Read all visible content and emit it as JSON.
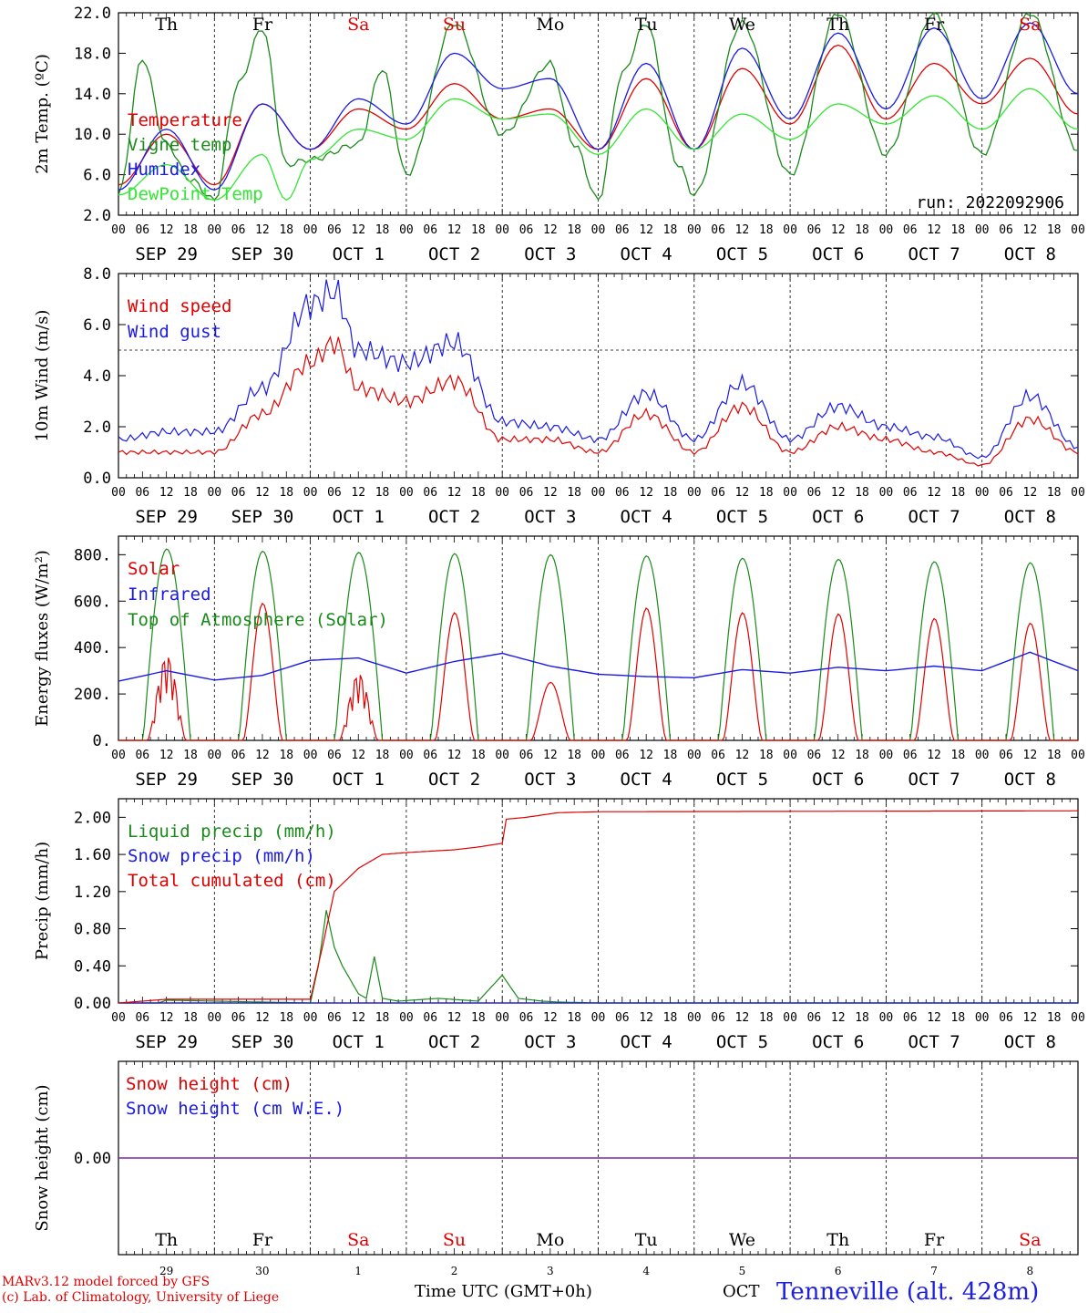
{
  "colors": {
    "red": "#e00000",
    "blue": "#1a1ae6",
    "dark_green": "#1a8a1a",
    "light_green": "#33e633",
    "purple": "#7a2aa0",
    "grid": "#000000"
  },
  "x_axis": {
    "hour_ticks": [
      "00",
      "06",
      "12",
      "18"
    ],
    "end_tick": "00",
    "dates": [
      "SEP 29",
      "SEP 30",
      "OCT  1",
      "OCT  2",
      "OCT  3",
      "OCT  4",
      "OCT  5",
      "OCT  6",
      "OCT  7",
      "OCT  8"
    ],
    "weekdays": [
      "Th",
      "Fr",
      "Sa",
      "Su",
      "Mo",
      "Tu",
      "We",
      "Th",
      "Fr",
      "Sa"
    ],
    "weekend_days": [
      2,
      3,
      9
    ],
    "day_numbers": [
      "29",
      "30",
      "1",
      "2",
      "3",
      "4",
      "5",
      "6",
      "7",
      "8"
    ]
  },
  "footer": {
    "model_line": "MARv3.12 model forced by GFS",
    "lab_line": "(c) Lab. of Climatology, University of Liege",
    "time_label": "Time UTC (GMT+0h)",
    "month_label": "OCT",
    "station": "Tenneville (alt. 428m)"
  },
  "chart_data": [
    {
      "type": "line",
      "ylabel": "2m Temp. (ºC)",
      "ylim": [
        2.0,
        22.0
      ],
      "yticks": [
        "2.0",
        "6.0",
        "10.0",
        "14.0",
        "18.0",
        "22.0"
      ],
      "run_label": "run: 2022092906",
      "x_unit": "hours since SEP 29 00 UTC",
      "series": [
        {
          "name": "Temperature",
          "color": "red",
          "x": [
            0,
            12,
            24,
            36,
            48,
            60,
            72,
            84,
            96,
            108,
            120,
            132,
            144,
            156,
            168,
            180,
            192,
            204,
            216,
            228,
            240
          ],
          "values": [
            5.0,
            10.0,
            5.0,
            13.0,
            8.5,
            12.5,
            10.5,
            15.0,
            11.5,
            12.5,
            8.5,
            15.5,
            8.5,
            16.5,
            11.0,
            18.8,
            11.5,
            17.0,
            13.0,
            17.5,
            12.0
          ]
        },
        {
          "name": "Vigne temp",
          "color": "dark_green",
          "x": [
            0,
            6,
            12,
            18,
            24,
            30,
            36,
            42,
            48,
            60,
            66,
            72,
            84,
            96,
            108,
            114,
            120,
            126,
            132,
            140,
            144,
            156,
            168,
            180,
            192,
            204,
            216,
            228,
            240
          ],
          "values": [
            4.0,
            17.5,
            9.0,
            5.5,
            3.5,
            15.0,
            20.5,
            7.0,
            7.5,
            9.0,
            16.5,
            6.0,
            21.0,
            10.0,
            17.0,
            9.0,
            3.5,
            16.0,
            21.0,
            7.0,
            4.0,
            21.0,
            6.0,
            22.0,
            8.0,
            22.0,
            8.0,
            22.0,
            8.5
          ]
        },
        {
          "name": "Humidex",
          "color": "blue",
          "x": [
            0,
            12,
            24,
            36,
            48,
            60,
            72,
            84,
            96,
            108,
            120,
            132,
            144,
            156,
            168,
            180,
            192,
            204,
            216,
            228,
            240
          ],
          "values": [
            4.5,
            10.5,
            4.5,
            13.0,
            8.5,
            13.5,
            11.0,
            18.0,
            14.5,
            15.5,
            8.5,
            17.0,
            8.5,
            18.5,
            11.5,
            20.0,
            12.5,
            20.5,
            13.5,
            21.0,
            14.0
          ]
        },
        {
          "name": "DewPoint Temp",
          "color": "light_green",
          "x": [
            0,
            12,
            24,
            36,
            42,
            48,
            60,
            72,
            84,
            96,
            108,
            120,
            132,
            144,
            156,
            168,
            180,
            192,
            204,
            216,
            228,
            240
          ],
          "values": [
            4.0,
            7.0,
            3.5,
            8.0,
            3.5,
            7.5,
            10.5,
            9.5,
            13.5,
            11.5,
            12.0,
            8.0,
            12.5,
            8.5,
            12.0,
            9.5,
            13.0,
            11.0,
            13.8,
            10.5,
            14.5,
            10.5
          ]
        }
      ]
    },
    {
      "type": "line",
      "ylabel": "10m Wind (m/s)",
      "ylim": [
        0.0,
        8.0
      ],
      "yticks": [
        "0.0",
        "2.0",
        "4.0",
        "6.0",
        "8.0"
      ],
      "reference_line": 5.0,
      "x_unit": "hours since SEP 29 00 UTC",
      "series": [
        {
          "name": "Wind speed",
          "color": "red",
          "x": [
            0,
            12,
            24,
            36,
            48,
            54,
            60,
            72,
            84,
            96,
            108,
            120,
            132,
            144,
            156,
            168,
            180,
            192,
            204,
            216,
            228,
            240
          ],
          "values": [
            1.0,
            1.0,
            1.0,
            2.5,
            4.5,
            5.3,
            3.5,
            3.0,
            3.8,
            1.5,
            1.5,
            1.0,
            2.5,
            1.0,
            2.8,
            1.0,
            2.0,
            1.5,
            1.0,
            0.5,
            2.3,
            1.0
          ]
        },
        {
          "name": "Wind gust",
          "color": "blue",
          "x": [
            0,
            12,
            24,
            36,
            48,
            54,
            60,
            72,
            84,
            96,
            108,
            120,
            132,
            144,
            156,
            168,
            180,
            192,
            204,
            216,
            228,
            240
          ],
          "values": [
            1.5,
            1.8,
            1.8,
            3.5,
            6.8,
            7.3,
            5.0,
            4.5,
            5.3,
            2.2,
            2.0,
            1.5,
            3.3,
            1.5,
            3.7,
            1.5,
            2.8,
            2.0,
            1.6,
            0.8,
            3.2,
            1.2
          ]
        }
      ]
    },
    {
      "type": "line",
      "ylabel": "Energy fluxes (W/m²)",
      "ylim": [
        0,
        880
      ],
      "yticks": [
        "0.",
        "200.",
        "400.",
        "600.",
        "800."
      ],
      "x_unit": "hours since SEP 29 00 UTC",
      "series": [
        {
          "name": "Solar",
          "color": "red",
          "peaks": [
            380,
            590,
            300,
            550,
            250,
            570,
            550,
            545,
            525,
            505
          ]
        },
        {
          "name": "Infrared",
          "color": "blue",
          "x": [
            0,
            12,
            24,
            36,
            48,
            60,
            72,
            84,
            96,
            108,
            120,
            132,
            144,
            156,
            168,
            180,
            192,
            204,
            216,
            228,
            240
          ],
          "values": [
            255,
            300,
            260,
            280,
            345,
            355,
            290,
            340,
            375,
            320,
            285,
            275,
            270,
            305,
            290,
            315,
            300,
            320,
            300,
            380,
            300
          ]
        },
        {
          "name": "Top of Atmosphere (Solar)",
          "color": "dark_green",
          "peaks": [
            825,
            815,
            810,
            805,
            800,
            795,
            785,
            780,
            770,
            765
          ]
        }
      ]
    },
    {
      "type": "line",
      "ylabel": "Precip (mm/h)",
      "ylim": [
        0.0,
        2.2
      ],
      "yticks": [
        "0.00",
        "0.40",
        "0.80",
        "1.20",
        "1.60",
        "2.00"
      ],
      "x_unit": "hours since SEP 29 00 UTC",
      "series": [
        {
          "name": "Liquid precip (mm/h)",
          "color": "dark_green",
          "x": [
            0,
            10,
            12,
            48,
            50,
            52,
            54,
            56,
            58,
            60,
            62,
            64,
            66,
            70,
            80,
            90,
            96,
            100,
            106,
            110,
            120,
            240
          ],
          "values": [
            0,
            0,
            0.03,
            0,
            0.4,
            1.0,
            0.6,
            0.4,
            0.25,
            0.1,
            0.05,
            0.5,
            0.05,
            0.02,
            0.05,
            0.02,
            0.3,
            0.05,
            0.02,
            0.01,
            0,
            0
          ]
        },
        {
          "name": "Snow precip (mm/h)",
          "color": "blue",
          "x": [
            0,
            240
          ],
          "values": [
            0,
            0
          ]
        },
        {
          "name": "Total cumulated (cm)",
          "color": "red",
          "x": [
            0,
            12,
            48,
            51,
            54,
            60,
            66,
            72,
            84,
            90,
            96,
            97,
            102,
            110,
            120,
            240
          ],
          "values": [
            0,
            0.04,
            0.04,
            0.6,
            1.2,
            1.45,
            1.6,
            1.62,
            1.65,
            1.68,
            1.72,
            1.98,
            2.0,
            2.05,
            2.06,
            2.07
          ]
        }
      ]
    },
    {
      "type": "line",
      "ylabel": "Snow height (cm)",
      "ylim": [
        -1,
        1
      ],
      "yticks": [
        "0.00"
      ],
      "x_unit": "hours since SEP 29 00 UTC",
      "series": [
        {
          "name": "Snow height (cm)",
          "color": "red",
          "x": [
            0,
            240
          ],
          "values": [
            0,
            0
          ]
        },
        {
          "name": "Snow height (cm W.E.)",
          "color": "blue",
          "x": [
            0,
            240
          ],
          "values": [
            0,
            0
          ]
        }
      ]
    }
  ]
}
